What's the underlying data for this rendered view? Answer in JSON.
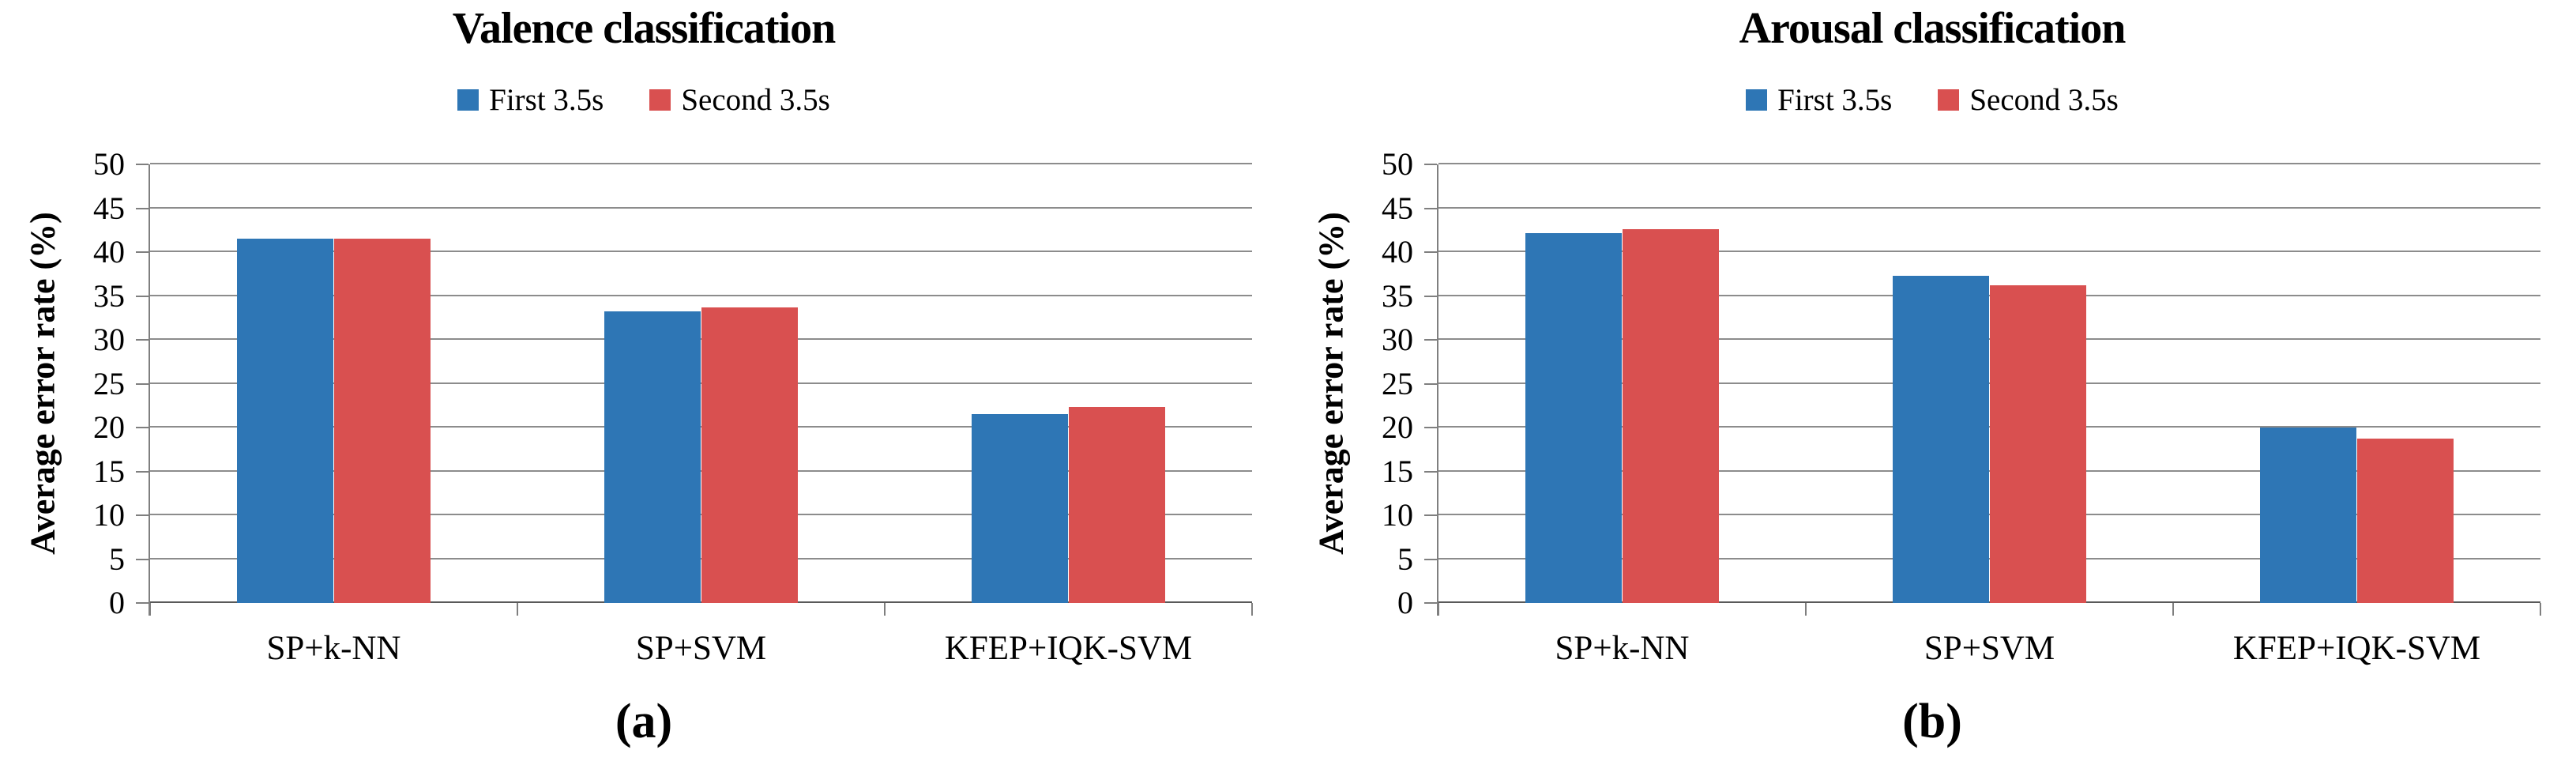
{
  "chart_data": [
    {
      "type": "bar",
      "panel_label": "(a)",
      "title": "Valence classification",
      "categories": [
        "SP+k-NN",
        "SP+SVM",
        "KFEP+IQK-SVM"
      ],
      "series": [
        {
          "name": "First 3.5s",
          "color": "#2E76B5",
          "values": [
            41.5,
            33.2,
            21.5
          ]
        },
        {
          "name": "Second 3.5s",
          "color": "#D95050",
          "values": [
            41.5,
            33.7,
            22.3
          ]
        }
      ],
      "xlabel": "",
      "ylabel": "Average error rate (%)",
      "ylim": [
        0,
        50
      ],
      "ytick_step": 5,
      "grid": true,
      "legend_position": "top"
    },
    {
      "type": "bar",
      "panel_label": "(b)",
      "title": "Arousal classification",
      "categories": [
        "SP+k-NN",
        "SP+SVM",
        "KFEP+IQK-SVM"
      ],
      "series": [
        {
          "name": "First 3.5s",
          "color": "#2E76B5",
          "values": [
            42.2,
            37.3,
            20.0
          ]
        },
        {
          "name": "Second 3.5s",
          "color": "#D95050",
          "values": [
            42.6,
            36.2,
            18.7
          ]
        }
      ],
      "xlabel": "",
      "ylabel": "Average error rate (%)",
      "ylim": [
        0,
        50
      ],
      "ytick_step": 5,
      "grid": true,
      "legend_position": "top"
    }
  ],
  "styles": {
    "background": "#ffffff",
    "text_color": "#000000",
    "grid_color": "#8c8c8c",
    "axis_color": "#7f7f7f",
    "baseline_color": "#595959",
    "series_blue": "#2E76B5",
    "series_red": "#D95050"
  }
}
